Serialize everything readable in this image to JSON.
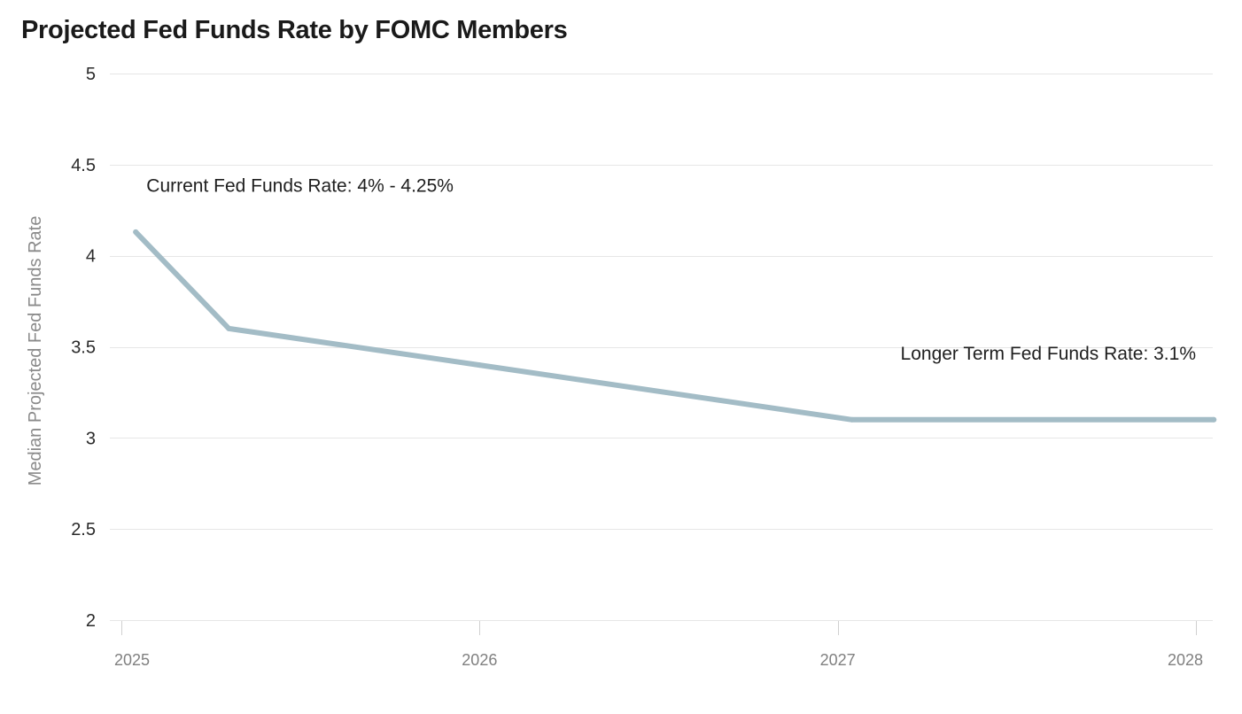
{
  "chart_data": {
    "type": "line",
    "title": "Projected Fed Funds Rate by FOMC Members",
    "xlabel": "",
    "ylabel": "Median Projected Fed Funds Rate",
    "xlim": [
      2025,
      2028.05
    ],
    "ylim": [
      2,
      5
    ],
    "yticks": [
      {
        "value": 2,
        "label": "2"
      },
      {
        "value": 2.5,
        "label": "2.5"
      },
      {
        "value": 3,
        "label": "3"
      },
      {
        "value": 3.5,
        "label": "3.5"
      },
      {
        "value": 4,
        "label": "4"
      },
      {
        "value": 4.5,
        "label": "4.5"
      },
      {
        "value": 5,
        "label": "5"
      }
    ],
    "xticks": [
      {
        "value": 2025,
        "label": "2025"
      },
      {
        "value": 2026,
        "label": "2026"
      },
      {
        "value": 2027,
        "label": "2027"
      },
      {
        "value": 2028,
        "label": "2028"
      }
    ],
    "grid": true,
    "series": [
      {
        "name": "Median Projected Fed Funds Rate",
        "color": "#a3bcc6",
        "points": [
          {
            "x": 2025.04,
            "y": 4.13
          },
          {
            "x": 2025.3,
            "y": 3.6
          },
          {
            "x": 2026.0,
            "y": 3.4
          },
          {
            "x": 2027.04,
            "y": 3.1
          },
          {
            "x": 2028.05,
            "y": 3.1
          }
        ]
      }
    ],
    "annotations": [
      {
        "text": "Current Fed Funds Rate: 4% - 4.25%",
        "x": 2025.07,
        "y": 4.35,
        "anchor": "start"
      },
      {
        "text": "Longer Term Fed Funds Rate: 3.1%",
        "x": 2028.0,
        "y": 3.43,
        "anchor": "end"
      }
    ]
  }
}
